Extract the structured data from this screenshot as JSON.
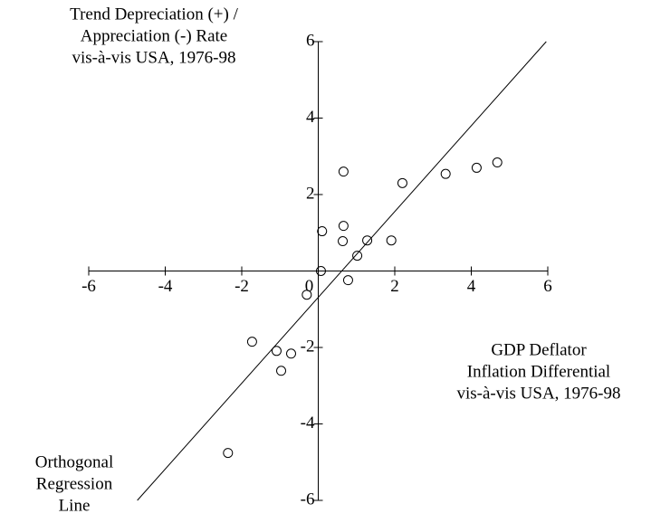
{
  "chart_data": {
    "type": "scatter",
    "y_label": [
      "Trend Depreciation (+) /",
      "Appreciation (-) Rate",
      "vis-à-vis USA, 1976-98"
    ],
    "x_label": [
      "GDP Deflator",
      "Inflation Differential",
      "vis-à-vis USA, 1976-98"
    ],
    "line_label": [
      "Orthogonal",
      "Regression",
      "Line"
    ],
    "x": [
      0.07,
      0.1,
      -0.3,
      0.66,
      0.66,
      0.78,
      0.64,
      1.02,
      1.28,
      1.91,
      2.2,
      3.33,
      4.14,
      4.68,
      -1.73,
      -1.09,
      -0.71,
      -0.97,
      -2.36
    ],
    "values": [
      0,
      1.04,
      -0.62,
      2.6,
      1.18,
      -0.24,
      0.78,
      0.4,
      0.8,
      0.8,
      2.3,
      2.54,
      2.7,
      2.84,
      -1.85,
      -2.09,
      -2.16,
      -2.61,
      -4.76
    ],
    "regression_line": {
      "x": [
        -4.73,
        5.96
      ],
      "y": [
        -6,
        6
      ]
    },
    "color": "#000000",
    "xlim": [
      -6,
      6
    ],
    "ylim": [
      -6,
      6
    ],
    "xticks": [
      -6,
      -4,
      -2,
      0,
      2,
      4,
      6
    ],
    "yticks": [
      -6,
      -4,
      -2,
      2,
      4,
      6
    ]
  }
}
